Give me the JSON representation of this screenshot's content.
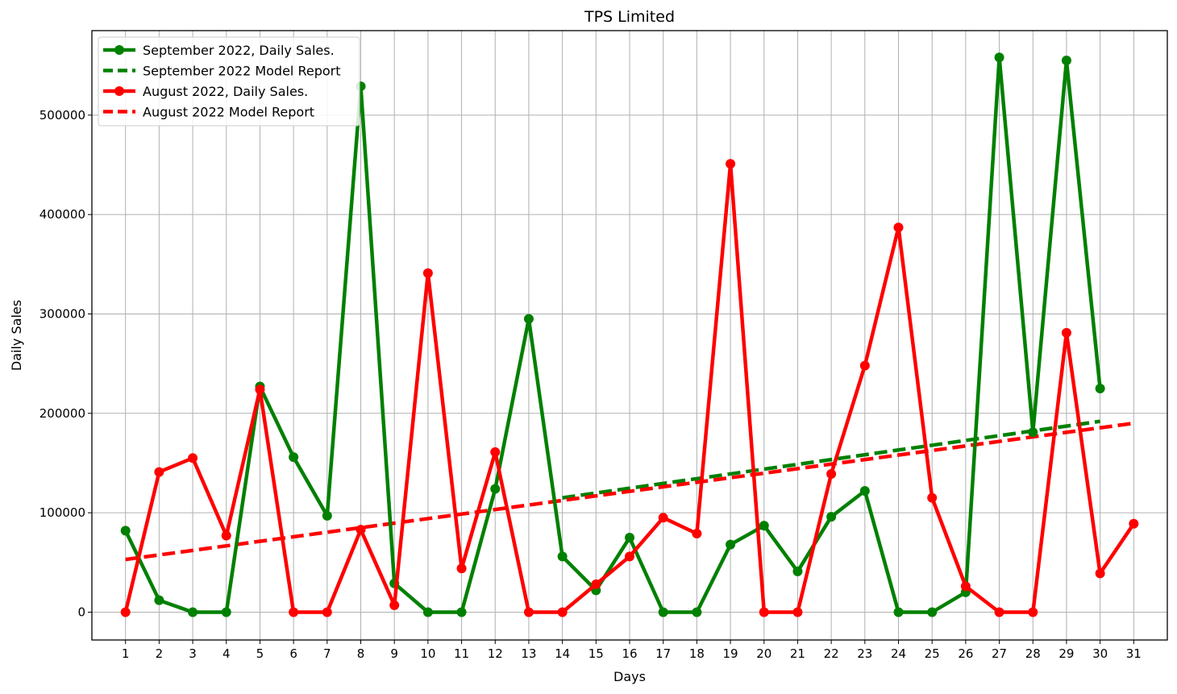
{
  "chart_data": {
    "type": "line",
    "title": "TPS Limited",
    "xlabel": "Days",
    "ylabel": "Daily Sales",
    "xlim": [
      0.0,
      32.0
    ],
    "ylim": [
      -28000,
      585000
    ],
    "yticks": [
      0,
      100000,
      200000,
      300000,
      400000,
      500000
    ],
    "xticks": [
      1,
      2,
      3,
      4,
      5,
      6,
      7,
      8,
      9,
      10,
      11,
      12,
      13,
      14,
      15,
      16,
      17,
      18,
      19,
      20,
      21,
      22,
      23,
      24,
      25,
      26,
      27,
      28,
      29,
      30,
      31
    ],
    "grid": true,
    "legend": "top-left",
    "colors": {
      "september": "#008000",
      "august": "#ff0000"
    },
    "series": [
      {
        "name": "September 2022, Daily Sales.",
        "color": "#008000",
        "style": "solid-markers",
        "x": [
          1,
          2,
          3,
          4,
          5,
          6,
          7,
          8,
          9,
          10,
          11,
          12,
          13,
          14,
          15,
          16,
          17,
          18,
          19,
          20,
          21,
          22,
          23,
          24,
          25,
          26,
          27,
          28,
          29,
          30
        ],
        "y": [
          82000,
          12000,
          0,
          0,
          227000,
          156000,
          97000,
          529000,
          29000,
          0,
          0,
          124000,
          295000,
          56000,
          22000,
          75000,
          0,
          0,
          68000,
          87000,
          41000,
          96000,
          122000,
          0,
          0,
          20000,
          558000,
          181000,
          555000,
          225000
        ]
      },
      {
        "name": "September 2022 Model Report",
        "color": "#008000",
        "style": "dashed",
        "x": [
          14,
          30
        ],
        "y": [
          115000,
          192000
        ]
      },
      {
        "name": "August 2022, Daily Sales.",
        "color": "#ff0000",
        "style": "solid-markers",
        "x": [
          1,
          2,
          3,
          4,
          5,
          6,
          7,
          8,
          9,
          10,
          11,
          12,
          13,
          14,
          15,
          16,
          17,
          18,
          19,
          20,
          21,
          22,
          23,
          24,
          25,
          26,
          27,
          28,
          29,
          30,
          31
        ],
        "y": [
          0,
          141000,
          155000,
          77000,
          224000,
          0,
          0,
          83000,
          7000,
          341000,
          44000,
          161000,
          0,
          0,
          28000,
          56000,
          95000,
          79000,
          451000,
          0,
          0,
          139000,
          248000,
          387000,
          115000,
          26000,
          0,
          0,
          281000,
          39000,
          89000
        ]
      },
      {
        "name": "August 2022 Model Report",
        "color": "#ff0000",
        "style": "dashed",
        "x": [
          1,
          31
        ],
        "y": [
          53000,
          190000
        ]
      }
    ]
  }
}
